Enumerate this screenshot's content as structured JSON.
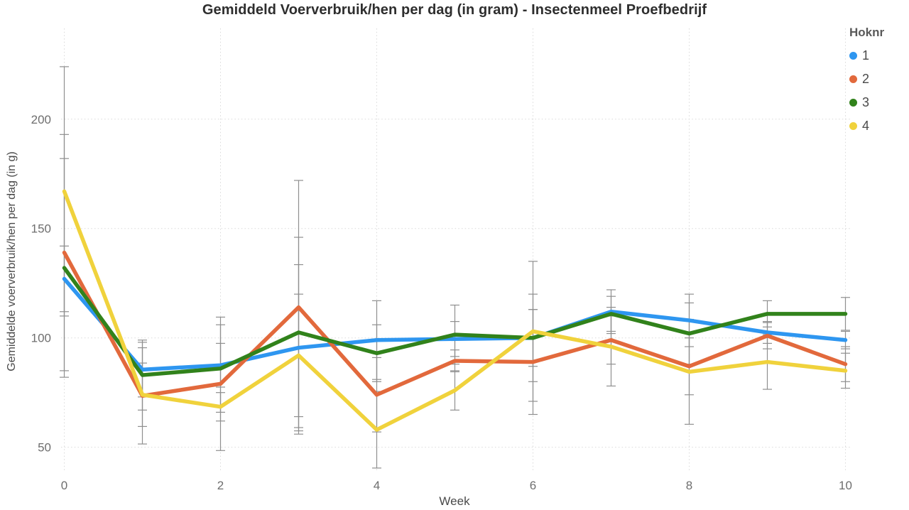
{
  "chart_data": {
    "type": "line",
    "title": "Gemiddeld Voerverbruik/hen per dag (in gram) - Insectenmeel Proefbedrijf",
    "xlabel": "Week",
    "ylabel": "Gemiddelde voerverbruik/hen per dag (in g)",
    "x": [
      0,
      1,
      2,
      3,
      4,
      5,
      6,
      7,
      8,
      9,
      10
    ],
    "xticks": [
      0,
      2,
      4,
      6,
      8,
      10
    ],
    "yticks": [
      50,
      100,
      150,
      200
    ],
    "ylim": [
      39.5,
      241.5
    ],
    "grid": "dotted",
    "error_bars": true,
    "legend_position": "top-right",
    "legend_title": "Hoknr",
    "series": [
      {
        "name": "1",
        "color": "#2E96F0",
        "values": [
          127,
          85.5,
          87.5,
          95.5,
          99,
          99.5,
          100,
          112,
          108,
          102.5,
          99
        ],
        "errors": [
          15,
          12.5,
          10,
          38,
          18,
          8,
          13,
          10,
          12,
          5,
          4
        ]
      },
      {
        "name": "2",
        "color": "#E2693C",
        "values": [
          139,
          73.5,
          79,
          114,
          74,
          89.5,
          89,
          99,
          87,
          101,
          88
        ],
        "errors": [
          54,
          22,
          30.5,
          58,
          17,
          5,
          24,
          11,
          13,
          6,
          8
        ]
      },
      {
        "name": "3",
        "color": "#31821B",
        "values": [
          132,
          83,
          86,
          102.5,
          93,
          101.5,
          100,
          111,
          102,
          111,
          111
        ],
        "errors": [
          50,
          16,
          20,
          43.5,
          13,
          13.5,
          20,
          8,
          14,
          6,
          7.5
        ]
      },
      {
        "name": "4",
        "color": "#F0D23C",
        "values": [
          167,
          74,
          68.5,
          92,
          58,
          76,
          103,
          96,
          84.5,
          89,
          85
        ],
        "errors": [
          57,
          14.5,
          6.5,
          28,
          17.5,
          9,
          32,
          18,
          24,
          12.5,
          8
        ]
      }
    ]
  },
  "colors": {
    "background": "#FFFFFF",
    "grid": "#D9D9D9",
    "error_bar": "#8F8F8F",
    "title_text": "#2E2E2E",
    "tick_text": "#6E6E6E",
    "axis_label_text": "#4A4A4A",
    "legend_title_text": "#595959"
  }
}
